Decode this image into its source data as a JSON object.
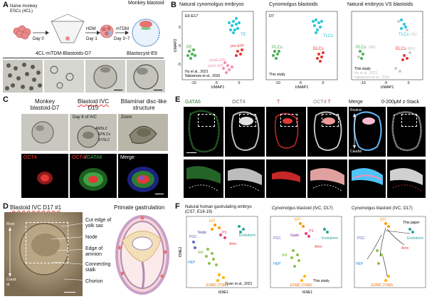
{
  "panelA": {
    "label": "A",
    "cells_label_line1": "Naïve monkey",
    "cells_label_line2": "ESCs (4CL)",
    "day0": "Day 0",
    "hdm": "HDM",
    "day1": "Day 1",
    "mtdm": "mTDM",
    "day37": "Day 3~7",
    "blastoid_title": "Monkey blastoid",
    "row_label1": "4CL-mTDM-Blastoids-D7",
    "row_label2": "Blastocyst-E9"
  },
  "panelB": {
    "label": "B",
    "title1": "Natural cynomolgus embryos",
    "title2": "Cynomolgus blastoids",
    "title3": "Natural embryos VS blastoids",
    "sub1": "E6-E17",
    "sub2": "D7",
    "xlabel": "UMAP1",
    "ylabel": "UMAP2",
    "xticks": [
      "-10",
      "-5",
      "0"
    ],
    "yticks": [
      "-5",
      "0",
      "5"
    ],
    "te": "TE",
    "pe": "PE",
    "preEpi": "pre-EPI",
    "postEpiE": "postE-EPI",
    "postEpiL": "postL-EPI",
    "tlcs": "TLCs",
    "plcs": "PLCs",
    "elcs": "ELCs",
    "te_paren": "(TE)",
    "pe_paren": "(PE)",
    "epi_paren": "(EPI)",
    "cite1": "Hu et al., 2021",
    "cite2": "Nakamura et al., 2016",
    "this_study": "This study"
  },
  "panelC": {
    "label": "C",
    "col1_line1": "Monkey",
    "col1_line2": "blastoid-D7",
    "col2_line1": "Blastoid IVC",
    "col2_line2": "D15",
    "col3_line1": "Bilaminar disc-like",
    "col3_line2": "structure",
    "day8": "Day 8 of IVC",
    "zoom": "Zoom",
    "amslc": "AMSLC",
    "epilcs": "EPILCs",
    "sysl": "SYSLC",
    "oct4": "OCT4",
    "oct4_gata6_a": "OCT4",
    "oct4_gata6_sep": "/",
    "oct4_gata6_b": "GATA6",
    "merge": "Merge"
  },
  "panelD": {
    "label": "D",
    "title": "Blastoid IVC D17 #1",
    "rostral": "Rost",
    "caudal": "Caud",
    "al": "al",
    "schema_title": "Primate gastrulation",
    "labels": [
      "Cut edge of",
      "yolk sac",
      "Node",
      "Edge of",
      "amnion",
      "Connecting",
      "stalk",
      "Chorion"
    ]
  },
  "panelE": {
    "label": "E",
    "gata6": "GATA6",
    "oct4": "OCT4",
    "t": "T",
    "oct4t_a": "OCT4",
    "oct4t_b": "T",
    "merge": "Merge",
    "zstack": "0-200μM z-Stack",
    "rostral": "Rostral",
    "caudal": "Caudal"
  },
  "panelF": {
    "label": "F",
    "title1_line1": "Natural human gastrulating embryo",
    "title1_line2": "(CS7, E16-19)",
    "title2": "Cynomolgus blastoid (IVC, D17)",
    "title3": "Cynomolgus blastoid (IVC, D17)",
    "xlabel": "tSNE1",
    "ylabel": "tSNE2",
    "cite1": "Tyser et al., 2021",
    "cite2": "This study",
    "cite3": "This paper",
    "epi": "EPI",
    "ps": "PS",
    "pgc": "PGC",
    "node": "Node",
    "gastr": "Gastr.",
    "endoderm": "Endoderm",
    "amn": "Amn",
    "exmc": "EXMC (YSM)",
    "am": "AM",
    "hep": "HEP",
    "ysm": "EXMC (YSM)"
  }
}
